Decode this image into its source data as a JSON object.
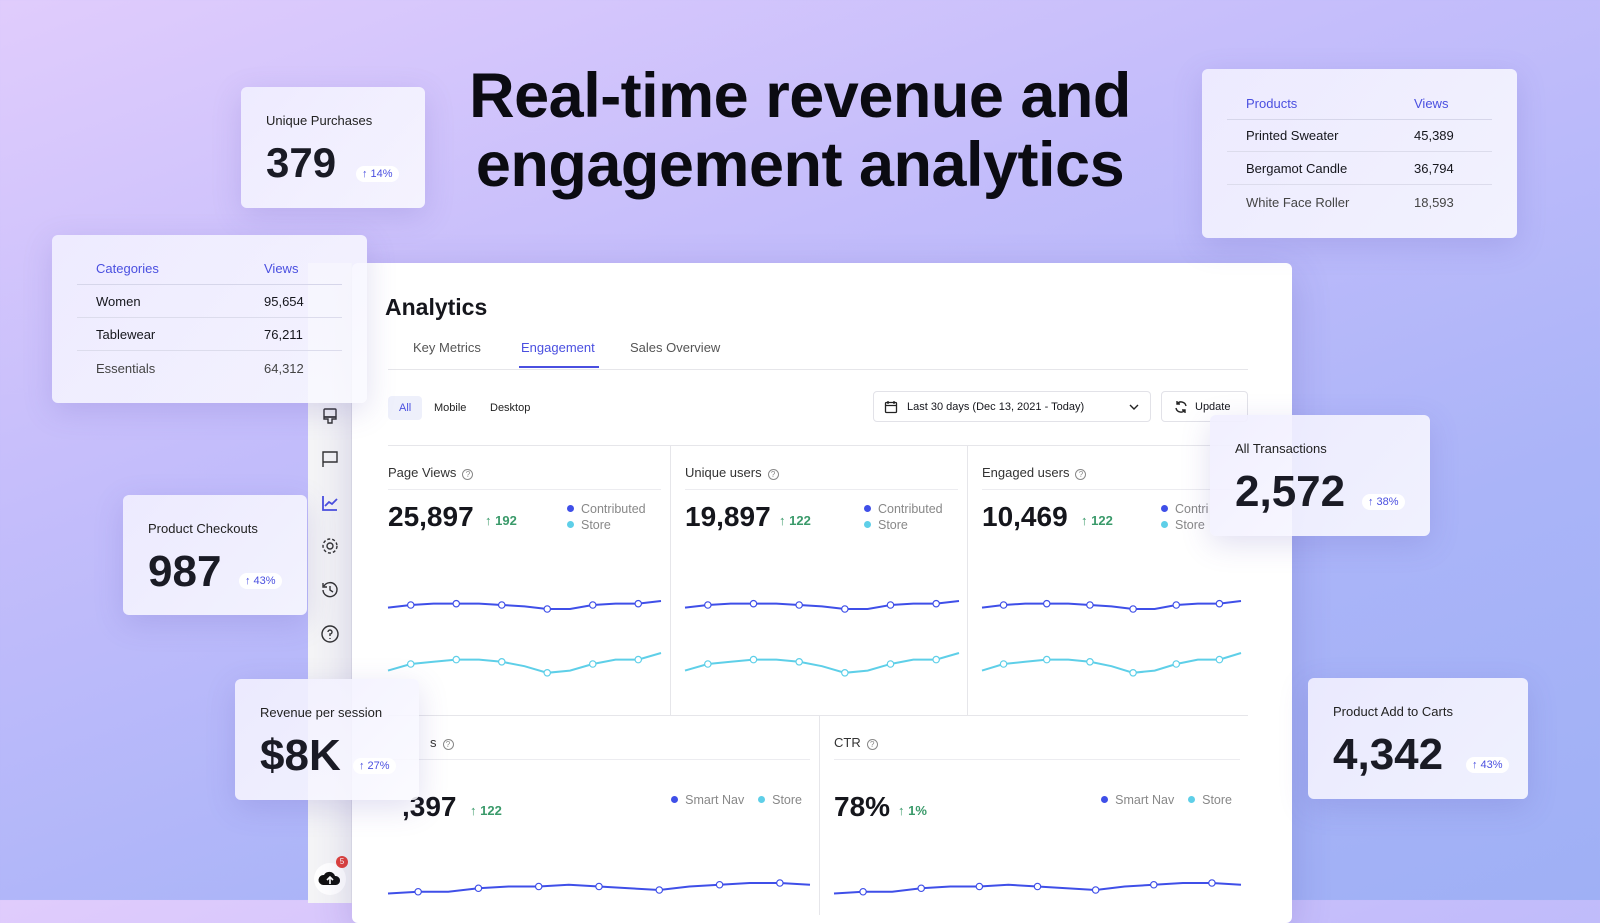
{
  "headline": [
    "Real-time revenue and",
    "engagement analytics"
  ],
  "colors": {
    "accent": "#4a4fe0",
    "contributed": "#3f4fe8",
    "store": "#5ecfe8",
    "positive": "#3a9a6a"
  },
  "floating_cards": {
    "unique_purchases": {
      "label": "Unique Purchases",
      "value": "379",
      "change": "↑ 14%"
    },
    "product_checkouts": {
      "label": "Product Checkouts",
      "value": "987",
      "change": "↑ 43%"
    },
    "revenue_per_session": {
      "label": "Revenue per session",
      "value": "$8K",
      "change": "↑ 27%"
    },
    "all_transactions": {
      "label": "All Transactions",
      "value": "2,572",
      "change": "↑ 38%"
    },
    "product_add_to_carts": {
      "label": "Product Add to Carts",
      "value": "4,342",
      "change": "↑ 43%"
    }
  },
  "products_table": {
    "headers": [
      "Products",
      "Views"
    ],
    "rows": [
      [
        "Printed Sweater",
        "45,389"
      ],
      [
        "Bergamot Candle",
        "36,794"
      ],
      [
        "White Face Roller",
        "18,593"
      ]
    ]
  },
  "categories_table": {
    "headers": [
      "Categories",
      "Views"
    ],
    "rows": [
      [
        "Women",
        "95,654"
      ],
      [
        "Tablewear",
        "76,211"
      ],
      [
        "Essentials",
        "64,312"
      ]
    ]
  },
  "sidebar": {
    "icons": [
      "brush-icon",
      "flag-icon",
      "analytics-icon",
      "gear-icon",
      "history-icon",
      "help-icon"
    ],
    "active": "analytics-icon",
    "upload_badge": "5"
  },
  "analytics": {
    "title": "Analytics",
    "tabs": [
      "Key Metrics",
      "Engagement",
      "Sales Overview"
    ],
    "active_tab": "Engagement",
    "filters": [
      "All",
      "Mobile",
      "Desktop"
    ],
    "active_filter": "All",
    "date_range": "Last 30 days (Dec 13, 2021 - Today)",
    "update_label": "Update",
    "metrics": [
      {
        "title": "Page Views",
        "value": "25,897",
        "delta": "↑ 192",
        "legend": [
          "Contributed",
          "Store"
        ]
      },
      {
        "title": "Unique users",
        "value": "19,897",
        "delta": "↑ 122",
        "legend": [
          "Contributed",
          "Store"
        ]
      },
      {
        "title": "Engaged users",
        "value": "10,469",
        "delta": "↑ 122",
        "legend": [
          "Contri",
          "Store"
        ]
      },
      {
        "title": "s",
        "value": ",397",
        "delta": "↑ 122",
        "legend": [
          "Smart Nav",
          "Store"
        ]
      },
      {
        "title": "CTR",
        "value": "78%",
        "delta": "↑ 1%",
        "legend": [
          "Smart Nav",
          "Store"
        ]
      }
    ],
    "spark_top": [
      [
        4,
        6,
        7,
        7,
        7,
        6,
        5,
        3,
        3,
        6,
        7,
        7,
        9
      ],
      [
        2,
        5,
        6,
        7,
        7,
        6,
        4,
        1,
        2,
        5,
        7,
        7,
        10
      ]
    ],
    "spark_bottom": [
      [
        2,
        3,
        3,
        5,
        6,
        6,
        7,
        6,
        5,
        4,
        6,
        7,
        8,
        8,
        7
      ]
    ]
  }
}
